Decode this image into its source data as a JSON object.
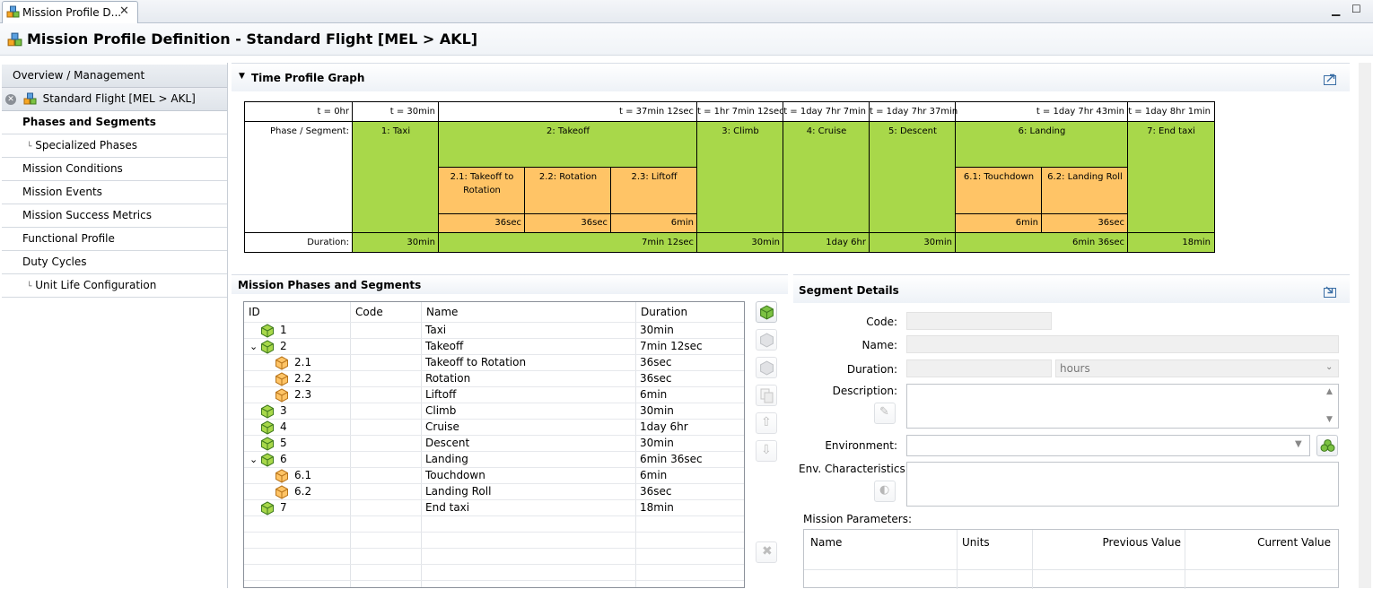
{
  "tab": {
    "label": "Mission Profile D..."
  },
  "header": {
    "title": "Mission Profile Definition - Standard Flight [MEL > AKL]"
  },
  "sidebar": {
    "overview": "Overview / Management",
    "flight": "Standard Flight [MEL > AKL]",
    "items": [
      {
        "label": "Phases and Segments"
      },
      {
        "label": "Specialized Phases"
      },
      {
        "label": "Mission Conditions"
      },
      {
        "label": "Mission Events"
      },
      {
        "label": "Mission Success Metrics"
      },
      {
        "label": "Functional Profile"
      },
      {
        "label": "Duty Cycles"
      },
      {
        "label": "Unit Life Configuration"
      }
    ]
  },
  "graph": {
    "title": "Time Profile Graph",
    "times": [
      "t = 0hr",
      "t = 30min",
      "t = 37min 12sec",
      "t = 1hr 7min 12sec",
      "t = 1day 7hr 7min",
      "t = 1day 7hr 37min",
      "t = 1day 7hr 43min",
      "t = 1day 8hr 1min"
    ],
    "phase_label": "Phase / Segment:",
    "duration_label": "Duration:",
    "phases": [
      "1: Taxi",
      "2: Takeoff",
      "3: Climb",
      "4: Cruise",
      "5: Descent",
      "6: Landing",
      "7: End taxi"
    ],
    "segments": [
      "2.1: Takeoff to",
      "Rotation",
      "2.2: Rotation",
      "2.3: Liftoff",
      "6.1: Touchdown",
      "6.2: Landing Roll"
    ],
    "segment_durations": [
      "36sec",
      "36sec",
      "6min",
      "6min",
      "36sec"
    ],
    "durations": [
      "30min",
      "7min 12sec",
      "30min",
      "1day 6hr",
      "30min",
      "6min 36sec",
      "18min"
    ]
  },
  "phases_table": {
    "title": "Mission Phases and Segments",
    "columns": [
      "ID",
      "Code",
      "Name",
      "Duration"
    ],
    "rows": [
      {
        "id": "1",
        "name": "Taxi",
        "duration": "30min"
      },
      {
        "id": "2",
        "name": "Takeoff",
        "duration": "7min 12sec"
      },
      {
        "id": "2.1",
        "name": "Takeoff to Rotation",
        "duration": "36sec"
      },
      {
        "id": "2.2",
        "name": "Rotation",
        "duration": "36sec"
      },
      {
        "id": "2.3",
        "name": "Liftoff",
        "duration": "6min"
      },
      {
        "id": "3",
        "name": "Climb",
        "duration": "30min"
      },
      {
        "id": "4",
        "name": "Cruise",
        "duration": "1day 6hr"
      },
      {
        "id": "5",
        "name": "Descent",
        "duration": "30min"
      },
      {
        "id": "6",
        "name": "Landing",
        "duration": "6min 36sec"
      },
      {
        "id": "6.1",
        "name": "Touchdown",
        "duration": "6min"
      },
      {
        "id": "6.2",
        "name": "Landing Roll",
        "duration": "36sec"
      },
      {
        "id": "7",
        "name": "End taxi",
        "duration": "18min"
      }
    ]
  },
  "details": {
    "title": "Segment Details",
    "code_label": "Code:",
    "name_label": "Name:",
    "duration_label": "Duration:",
    "duration_unit": "hours",
    "description_label": "Description:",
    "environment_label": "Environment:",
    "env_char_label": "Env. Characteristics:",
    "mission_params_label": "Mission Parameters:",
    "param_columns": [
      "Name",
      "Units",
      "Previous Value",
      "Current Value"
    ]
  },
  "colors": {
    "phase_green": "#a8d84a",
    "segment_orange": "#ffc466"
  }
}
